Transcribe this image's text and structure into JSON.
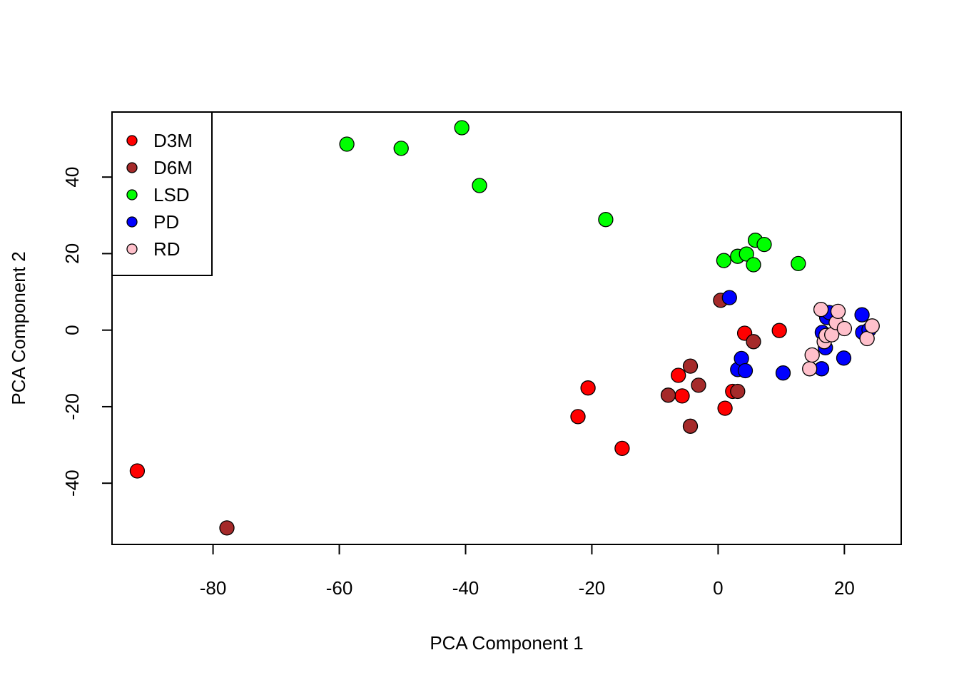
{
  "chart_data": {
    "type": "scatter",
    "xlabel": "PCA Component 1",
    "ylabel": "PCA Component 2",
    "xlim": [
      -96,
      29
    ],
    "ylim": [
      -56,
      57
    ],
    "xticks": [
      -80,
      -60,
      -40,
      -20,
      0,
      20
    ],
    "yticks": [
      -40,
      -20,
      0,
      20,
      40
    ],
    "grid": false,
    "legend_position": "top-left",
    "series": [
      {
        "name": "D3M",
        "color": "#ff0000",
        "points": [
          [
            -92.0,
            -36.8
          ],
          [
            -22.2,
            -22.6
          ],
          [
            -20.6,
            -15.1
          ],
          [
            -15.2,
            -30.9
          ],
          [
            -6.3,
            -11.8
          ],
          [
            -5.7,
            -17.2
          ],
          [
            1.1,
            -20.4
          ],
          [
            2.3,
            -16.0
          ],
          [
            4.2,
            -0.8
          ],
          [
            9.7,
            -0.1
          ]
        ]
      },
      {
        "name": "D6M",
        "color": "#a52a2a",
        "points": [
          [
            -77.8,
            -51.7
          ],
          [
            -7.9,
            -17.0
          ],
          [
            -4.4,
            -9.4
          ],
          [
            -4.4,
            -25.1
          ],
          [
            -3.1,
            -14.4
          ],
          [
            0.4,
            7.8
          ],
          [
            3.1,
            -16.0
          ],
          [
            5.6,
            -3.0
          ]
        ]
      },
      {
        "name": "LSD",
        "color": "#00ff00",
        "points": [
          [
            -58.8,
            48.6
          ],
          [
            -50.2,
            47.5
          ],
          [
            -40.6,
            52.9
          ],
          [
            -37.8,
            37.8
          ],
          [
            -17.8,
            28.9
          ],
          [
            0.9,
            18.2
          ],
          [
            3.1,
            19.3
          ],
          [
            4.5,
            19.9
          ],
          [
            5.6,
            17.1
          ],
          [
            5.9,
            23.5
          ],
          [
            7.3,
            22.4
          ],
          [
            12.7,
            17.4
          ]
        ]
      },
      {
        "name": "PD",
        "color": "#0000ff",
        "points": [
          [
            1.8,
            8.5
          ],
          [
            3.1,
            -10.3
          ],
          [
            3.7,
            -7.4
          ],
          [
            4.3,
            -10.6
          ],
          [
            10.3,
            -11.2
          ],
          [
            16.4,
            -10.1
          ],
          [
            16.5,
            -0.6
          ],
          [
            17.0,
            -4.6
          ],
          [
            17.2,
            3.3
          ],
          [
            17.6,
            4.6
          ],
          [
            19.9,
            -7.3
          ],
          [
            22.8,
            4.0
          ],
          [
            22.9,
            -0.6
          ],
          [
            23.9,
            0.1
          ]
        ]
      },
      {
        "name": "RD",
        "color": "#ffc0cb",
        "points": [
          [
            14.5,
            -10.1
          ],
          [
            14.9,
            -6.5
          ],
          [
            16.3,
            5.4
          ],
          [
            16.8,
            -3.0
          ],
          [
            17.1,
            -1.4
          ],
          [
            18.0,
            -1.2
          ],
          [
            18.7,
            2.0
          ],
          [
            19.0,
            4.9
          ],
          [
            20.0,
            0.4
          ],
          [
            23.6,
            -2.2
          ],
          [
            24.4,
            1.1
          ]
        ]
      }
    ]
  }
}
